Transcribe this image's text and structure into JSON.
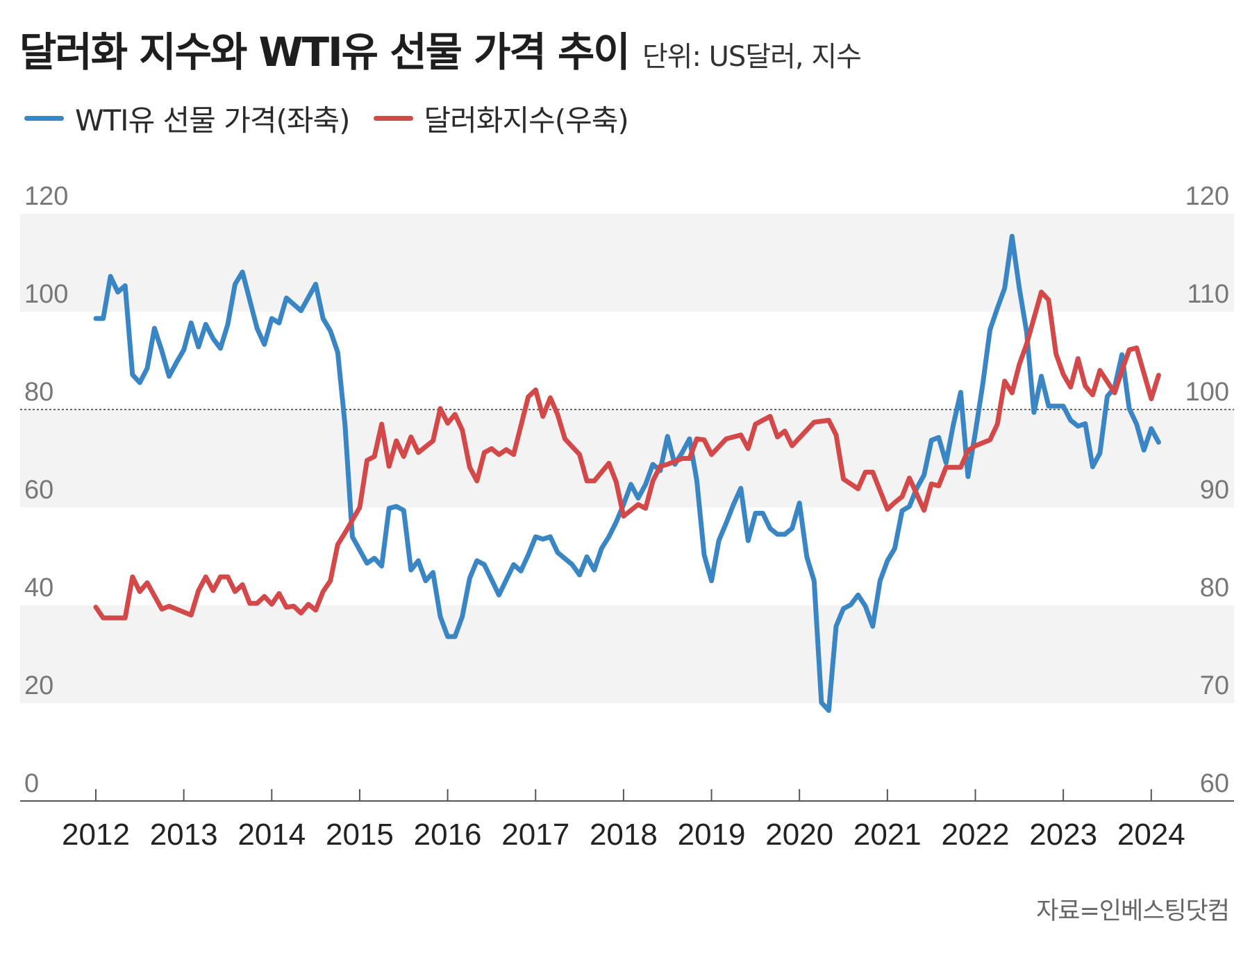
{
  "title": {
    "main": "달러화 지수와 WTI유 선물 가격 추이",
    "unit": "단위: US달러, 지수"
  },
  "source": "자료=인베스팅닷컴",
  "colors": {
    "wti": "#3a85c3",
    "dollar": "#d34848",
    "band": "#f3f3f3",
    "axis": "#555555"
  },
  "chart_data": {
    "type": "line",
    "legend_placement": "top-left",
    "grid": "alternating horizontal bands",
    "reference_line": {
      "axis": "right",
      "value": 100,
      "style": "dotted"
    },
    "x_ticks": [
      "2012",
      "2013",
      "2014",
      "2015",
      "2016",
      "2017",
      "2018",
      "2019",
      "2020",
      "2021",
      "2022",
      "2023",
      "2024"
    ],
    "y_left": {
      "range": [
        0,
        120
      ],
      "ticks": [
        "0",
        "20",
        "40",
        "60",
        "80",
        "100",
        "120"
      ]
    },
    "y_right": {
      "range": [
        60,
        120
      ],
      "ticks": [
        "60",
        "70",
        "80",
        "90",
        "100",
        "110",
        "120"
      ]
    },
    "series": [
      {
        "name": "WTI유 선물 가격(좌축)",
        "axis": "left",
        "color": "#3a85c3",
        "points": [
          [
            "2012-01",
            98.6
          ],
          [
            "2012-02",
            98.6
          ],
          [
            "2012-03",
            107.2
          ],
          [
            "2012-04",
            104.0
          ],
          [
            "2012-05",
            105.3
          ],
          [
            "2012-06",
            87.1
          ],
          [
            "2012-07",
            85.5
          ],
          [
            "2012-08",
            88.4
          ],
          [
            "2012-09",
            96.6
          ],
          [
            "2012-10",
            92.0
          ],
          [
            "2012-11",
            86.8
          ],
          [
            "2012-12",
            89.6
          ],
          [
            "2013-01",
            92.2
          ],
          [
            "2013-02",
            97.7
          ],
          [
            "2013-03",
            92.8
          ],
          [
            "2013-04",
            97.4
          ],
          [
            "2013-05",
            94.5
          ],
          [
            "2013-06",
            92.5
          ],
          [
            "2013-07",
            97.4
          ],
          [
            "2013-08",
            105.6
          ],
          [
            "2013-09",
            108.1
          ],
          [
            "2013-11",
            96.6
          ],
          [
            "2013-12",
            93.3
          ],
          [
            "2014-01",
            98.6
          ],
          [
            "2014-02",
            97.7
          ],
          [
            "2014-03",
            102.8
          ],
          [
            "2014-05",
            100.2
          ],
          [
            "2014-07",
            105.6
          ],
          [
            "2014-08",
            98.6
          ],
          [
            "2014-09",
            96.1
          ],
          [
            "2014-10",
            91.7
          ],
          [
            "2014-11",
            76.9
          ],
          [
            "2014-12",
            54.0
          ],
          [
            "2015-02",
            48.6
          ],
          [
            "2015-03",
            49.6
          ],
          [
            "2015-04",
            48.0
          ],
          [
            "2015-05",
            59.8
          ],
          [
            "2015-06",
            60.2
          ],
          [
            "2015-07",
            59.4
          ],
          [
            "2015-08",
            47.2
          ],
          [
            "2015-09",
            49.1
          ],
          [
            "2015-10",
            45.0
          ],
          [
            "2015-11",
            46.7
          ],
          [
            "2015-12",
            37.7
          ],
          [
            "2016-01",
            33.6
          ],
          [
            "2016-02",
            33.6
          ],
          [
            "2016-03",
            37.7
          ],
          [
            "2016-04",
            45.5
          ],
          [
            "2016-05",
            49.1
          ],
          [
            "2016-06",
            48.3
          ],
          [
            "2016-08",
            42.1
          ],
          [
            "2016-10",
            48.3
          ],
          [
            "2016-11",
            47.0
          ],
          [
            "2016-12",
            50.3
          ],
          [
            "2017-01",
            54.0
          ],
          [
            "2017-02",
            53.5
          ],
          [
            "2017-03",
            54.0
          ],
          [
            "2017-04",
            50.8
          ],
          [
            "2017-06",
            48.3
          ],
          [
            "2017-07",
            46.2
          ],
          [
            "2017-08",
            49.9
          ],
          [
            "2017-09",
            47.2
          ],
          [
            "2017-10",
            51.6
          ],
          [
            "2017-11",
            54.0
          ],
          [
            "2017-12",
            57.0
          ],
          [
            "2018-01",
            60.6
          ],
          [
            "2018-02",
            64.7
          ],
          [
            "2018-03",
            61.9
          ],
          [
            "2018-04",
            64.7
          ],
          [
            "2018-05",
            68.8
          ],
          [
            "2018-06",
            67.5
          ],
          [
            "2018-07",
            74.5
          ],
          [
            "2018-08",
            68.8
          ],
          [
            "2018-09",
            71.2
          ],
          [
            "2018-10",
            74.0
          ],
          [
            "2018-11",
            65.5
          ],
          [
            "2018-12",
            50.3
          ],
          [
            "2019-01",
            45.0
          ],
          [
            "2019-02",
            53.2
          ],
          [
            "2019-03",
            56.8
          ],
          [
            "2019-04",
            60.6
          ],
          [
            "2019-05",
            63.9
          ],
          [
            "2019-06",
            53.2
          ],
          [
            "2019-07",
            58.8
          ],
          [
            "2019-08",
            58.8
          ],
          [
            "2019-09",
            55.7
          ],
          [
            "2019-10",
            54.5
          ],
          [
            "2019-11",
            54.5
          ],
          [
            "2019-12",
            55.7
          ],
          [
            "2020-01",
            60.9
          ],
          [
            "2020-02",
            49.9
          ],
          [
            "2020-03",
            45.0
          ],
          [
            "2020-04",
            20.1
          ],
          [
            "2020-05",
            18.5
          ],
          [
            "2020-06",
            35.7
          ],
          [
            "2020-07",
            39.3
          ],
          [
            "2020-08",
            40.1
          ],
          [
            "2020-09",
            42.1
          ],
          [
            "2020-10",
            39.8
          ],
          [
            "2020-11",
            35.7
          ],
          [
            "2020-12",
            45.0
          ],
          [
            "2021-01",
            49.1
          ],
          [
            "2021-02",
            51.6
          ],
          [
            "2021-03",
            59.3
          ],
          [
            "2021-04",
            60.2
          ],
          [
            "2021-05",
            63.9
          ],
          [
            "2021-06",
            66.6
          ],
          [
            "2021-07",
            73.7
          ],
          [
            "2021-08",
            74.3
          ],
          [
            "2021-09",
            69.1
          ],
          [
            "2021-10",
            76.9
          ],
          [
            "2021-11",
            83.5
          ],
          [
            "2021-12",
            66.3
          ],
          [
            "2022-01",
            75.3
          ],
          [
            "2022-02",
            85.1
          ],
          [
            "2022-03",
            96.3
          ],
          [
            "2022-04",
            100.7
          ],
          [
            "2022-05",
            104.8
          ],
          [
            "2022-06",
            115.4
          ],
          [
            "2022-07",
            104.8
          ],
          [
            "2022-08",
            95.8
          ],
          [
            "2022-09",
            79.4
          ],
          [
            "2022-10",
            86.8
          ],
          [
            "2022-11",
            80.7
          ],
          [
            "2023-01",
            80.7
          ],
          [
            "2023-02",
            77.8
          ],
          [
            "2023-03",
            76.6
          ],
          [
            "2023-04",
            77.1
          ],
          [
            "2023-05",
            68.3
          ],
          [
            "2023-06",
            71.1
          ],
          [
            "2023-07",
            82.7
          ],
          [
            "2023-08",
            84.5
          ],
          [
            "2023-09",
            91.2
          ],
          [
            "2023-10",
            80.2
          ],
          [
            "2023-11",
            77.0
          ],
          [
            "2023-12",
            71.7
          ],
          [
            "2024-01",
            76.1
          ],
          [
            "2024-02",
            73.3
          ]
        ]
      },
      {
        "name": "달러화지수(우축)",
        "axis": "right",
        "color": "#d34848",
        "points": [
          [
            "2012-01",
            79.8
          ],
          [
            "2012-02",
            78.7
          ],
          [
            "2012-05",
            78.7
          ],
          [
            "2012-06",
            82.9
          ],
          [
            "2012-07",
            81.4
          ],
          [
            "2012-08",
            82.3
          ],
          [
            "2012-10",
            79.6
          ],
          [
            "2012-11",
            79.9
          ],
          [
            "2013-02",
            79.0
          ],
          [
            "2013-03",
            81.5
          ],
          [
            "2013-04",
            82.9
          ],
          [
            "2013-05",
            81.5
          ],
          [
            "2013-06",
            82.9
          ],
          [
            "2013-07",
            82.9
          ],
          [
            "2013-08",
            81.4
          ],
          [
            "2013-09",
            82.1
          ],
          [
            "2013-10",
            80.2
          ],
          [
            "2013-11",
            80.2
          ],
          [
            "2013-12",
            80.9
          ],
          [
            "2014-01",
            80.1
          ],
          [
            "2014-02",
            81.2
          ],
          [
            "2014-03",
            79.8
          ],
          [
            "2014-04",
            79.9
          ],
          [
            "2014-05",
            79.2
          ],
          [
            "2014-06",
            80.1
          ],
          [
            "2014-07",
            79.5
          ],
          [
            "2014-08",
            81.4
          ],
          [
            "2014-09",
            82.5
          ],
          [
            "2014-10",
            86.2
          ],
          [
            "2014-11",
            87.4
          ],
          [
            "2015-01",
            90.0
          ],
          [
            "2015-02",
            94.8
          ],
          [
            "2015-03",
            95.2
          ],
          [
            "2015-04",
            98.5
          ],
          [
            "2015-05",
            94.2
          ],
          [
            "2015-06",
            96.8
          ],
          [
            "2015-07",
            95.2
          ],
          [
            "2015-08",
            97.2
          ],
          [
            "2015-09",
            95.6
          ],
          [
            "2015-11",
            96.8
          ],
          [
            "2015-12",
            100.1
          ],
          [
            "2016-01",
            98.6
          ],
          [
            "2016-02",
            99.5
          ],
          [
            "2016-03",
            97.9
          ],
          [
            "2016-04",
            94.1
          ],
          [
            "2016-05",
            92.7
          ],
          [
            "2016-06",
            95.6
          ],
          [
            "2016-07",
            96.0
          ],
          [
            "2016-08",
            95.4
          ],
          [
            "2016-09",
            95.9
          ],
          [
            "2016-10",
            95.4
          ],
          [
            "2016-12",
            101.3
          ],
          [
            "2017-01",
            102.0
          ],
          [
            "2017-02",
            99.3
          ],
          [
            "2017-03",
            101.2
          ],
          [
            "2017-04",
            99.5
          ],
          [
            "2017-05",
            97.0
          ],
          [
            "2017-07",
            95.4
          ],
          [
            "2017-08",
            92.7
          ],
          [
            "2017-09",
            92.7
          ],
          [
            "2017-11",
            94.5
          ],
          [
            "2017-12",
            92.6
          ],
          [
            "2018-01",
            89.1
          ],
          [
            "2018-03",
            90.3
          ],
          [
            "2018-04",
            89.9
          ],
          [
            "2018-05",
            92.7
          ],
          [
            "2018-06",
            94.2
          ],
          [
            "2018-07",
            94.4
          ],
          [
            "2018-09",
            95.0
          ],
          [
            "2018-10",
            95.0
          ],
          [
            "2018-11",
            97.0
          ],
          [
            "2018-12",
            96.9
          ],
          [
            "2019-01",
            95.4
          ],
          [
            "2019-03",
            97.0
          ],
          [
            "2019-05",
            97.4
          ],
          [
            "2019-06",
            96.0
          ],
          [
            "2019-07",
            98.5
          ],
          [
            "2019-09",
            99.3
          ],
          [
            "2019-10",
            97.2
          ],
          [
            "2019-11",
            97.8
          ],
          [
            "2019-12",
            96.3
          ],
          [
            "2020-03",
            98.7
          ],
          [
            "2020-05",
            98.9
          ],
          [
            "2020-06",
            97.4
          ],
          [
            "2020-07",
            92.9
          ],
          [
            "2020-09",
            91.9
          ],
          [
            "2020-10",
            93.6
          ],
          [
            "2020-11",
            93.6
          ],
          [
            "2021-01",
            89.8
          ],
          [
            "2021-02",
            90.5
          ],
          [
            "2021-03",
            91.1
          ],
          [
            "2021-04",
            93.0
          ],
          [
            "2021-06",
            89.7
          ],
          [
            "2021-07",
            92.4
          ],
          [
            "2021-08",
            92.2
          ],
          [
            "2021-09",
            94.1
          ],
          [
            "2021-11",
            94.1
          ],
          [
            "2021-12",
            95.8
          ],
          [
            "2022-01",
            96.3
          ],
          [
            "2022-03",
            96.9
          ],
          [
            "2022-04",
            98.5
          ],
          [
            "2022-05",
            102.9
          ],
          [
            "2022-06",
            101.7
          ],
          [
            "2022-07",
            104.6
          ],
          [
            "2022-08",
            106.7
          ],
          [
            "2022-10",
            112.0
          ],
          [
            "2022-11",
            111.2
          ],
          [
            "2022-12",
            105.7
          ],
          [
            "2023-01",
            103.6
          ],
          [
            "2023-02",
            102.3
          ],
          [
            "2023-03",
            105.2
          ],
          [
            "2023-04",
            102.4
          ],
          [
            "2023-05",
            101.5
          ],
          [
            "2023-06",
            104.0
          ],
          [
            "2023-08",
            101.7
          ],
          [
            "2023-09",
            104.0
          ],
          [
            "2023-10",
            106.1
          ],
          [
            "2023-11",
            106.3
          ],
          [
            "2024-01",
            101.1
          ],
          [
            "2024-02",
            103.5
          ]
        ]
      }
    ]
  }
}
